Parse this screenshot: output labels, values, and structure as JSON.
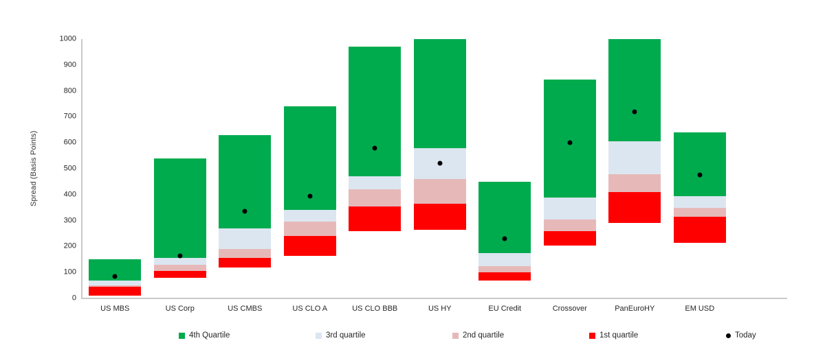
{
  "chart_data": {
    "type": "bar",
    "subtype": "stacked-quartile-range",
    "title": "",
    "xlabel": "",
    "ylabel": "Spread (Basis Points)",
    "ylim": [
      0,
      1000
    ],
    "yticks": [
      0,
      100,
      200,
      300,
      400,
      500,
      600,
      700,
      800,
      900,
      1000
    ],
    "grid": false,
    "legend_position": "bottom",
    "categories": [
      "US MBS",
      "US Corp",
      "US CMBS",
      "US CLO A",
      "US CLO BBB",
      "US HY",
      "EU Credit",
      "Crossover",
      "PanEuroHY",
      "EM USD"
    ],
    "bars": [
      {
        "category": "US MBS",
        "min": 10,
        "q1": 45,
        "median": 50,
        "q3": 70,
        "max": 150,
        "today": 85
      },
      {
        "category": "US Corp",
        "min": 80,
        "q1": 105,
        "median": 130,
        "q3": 155,
        "max": 540,
        "today": 165
      },
      {
        "category": "US CMBS",
        "min": 120,
        "q1": 155,
        "median": 190,
        "q3": 270,
        "max": 630,
        "today": 335
      },
      {
        "category": "US CLO A",
        "min": 165,
        "q1": 240,
        "median": 295,
        "q3": 340,
        "max": 740,
        "today": 395
      },
      {
        "category": "US CLO BBB",
        "min": 260,
        "q1": 355,
        "median": 420,
        "q3": 470,
        "max": 970,
        "today": 580
      },
      {
        "category": "US HY",
        "min": 265,
        "q1": 365,
        "median": 460,
        "q3": 580,
        "max": 1000,
        "today": 520
      },
      {
        "category": "EU Credit",
        "min": 70,
        "q1": 100,
        "median": 125,
        "q3": 175,
        "max": 450,
        "today": 230
      },
      {
        "category": "Crossover",
        "min": 205,
        "q1": 260,
        "median": 305,
        "q3": 390,
        "max": 845,
        "today": 600
      },
      {
        "category": "PanEuroHY",
        "min": 290,
        "q1": 410,
        "median": 480,
        "q3": 605,
        "max": 1000,
        "today": 720
      },
      {
        "category": "EM USD",
        "min": 215,
        "q1": 315,
        "median": 350,
        "q3": 395,
        "max": 640,
        "today": 475
      }
    ],
    "legend": [
      {
        "label": "4th Quartile",
        "marker": "square",
        "color": "#00AB4E"
      },
      {
        "label": "3rd quartile",
        "marker": "square",
        "color": "#DCE6F1"
      },
      {
        "label": "2nd quartile",
        "marker": "square",
        "color": "#E6B9B8"
      },
      {
        "label": "1st quartile",
        "marker": "square",
        "color": "#FF0000"
      },
      {
        "label": "Today",
        "marker": "dot",
        "color": "#000000"
      }
    ],
    "colors": {
      "quartile4": "#00AB4E",
      "quartile3": "#DCE6F1",
      "quartile2": "#E6B9B8",
      "quartile1": "#FF0000",
      "today": "#000000",
      "axis": "#C9C9C9"
    }
  }
}
